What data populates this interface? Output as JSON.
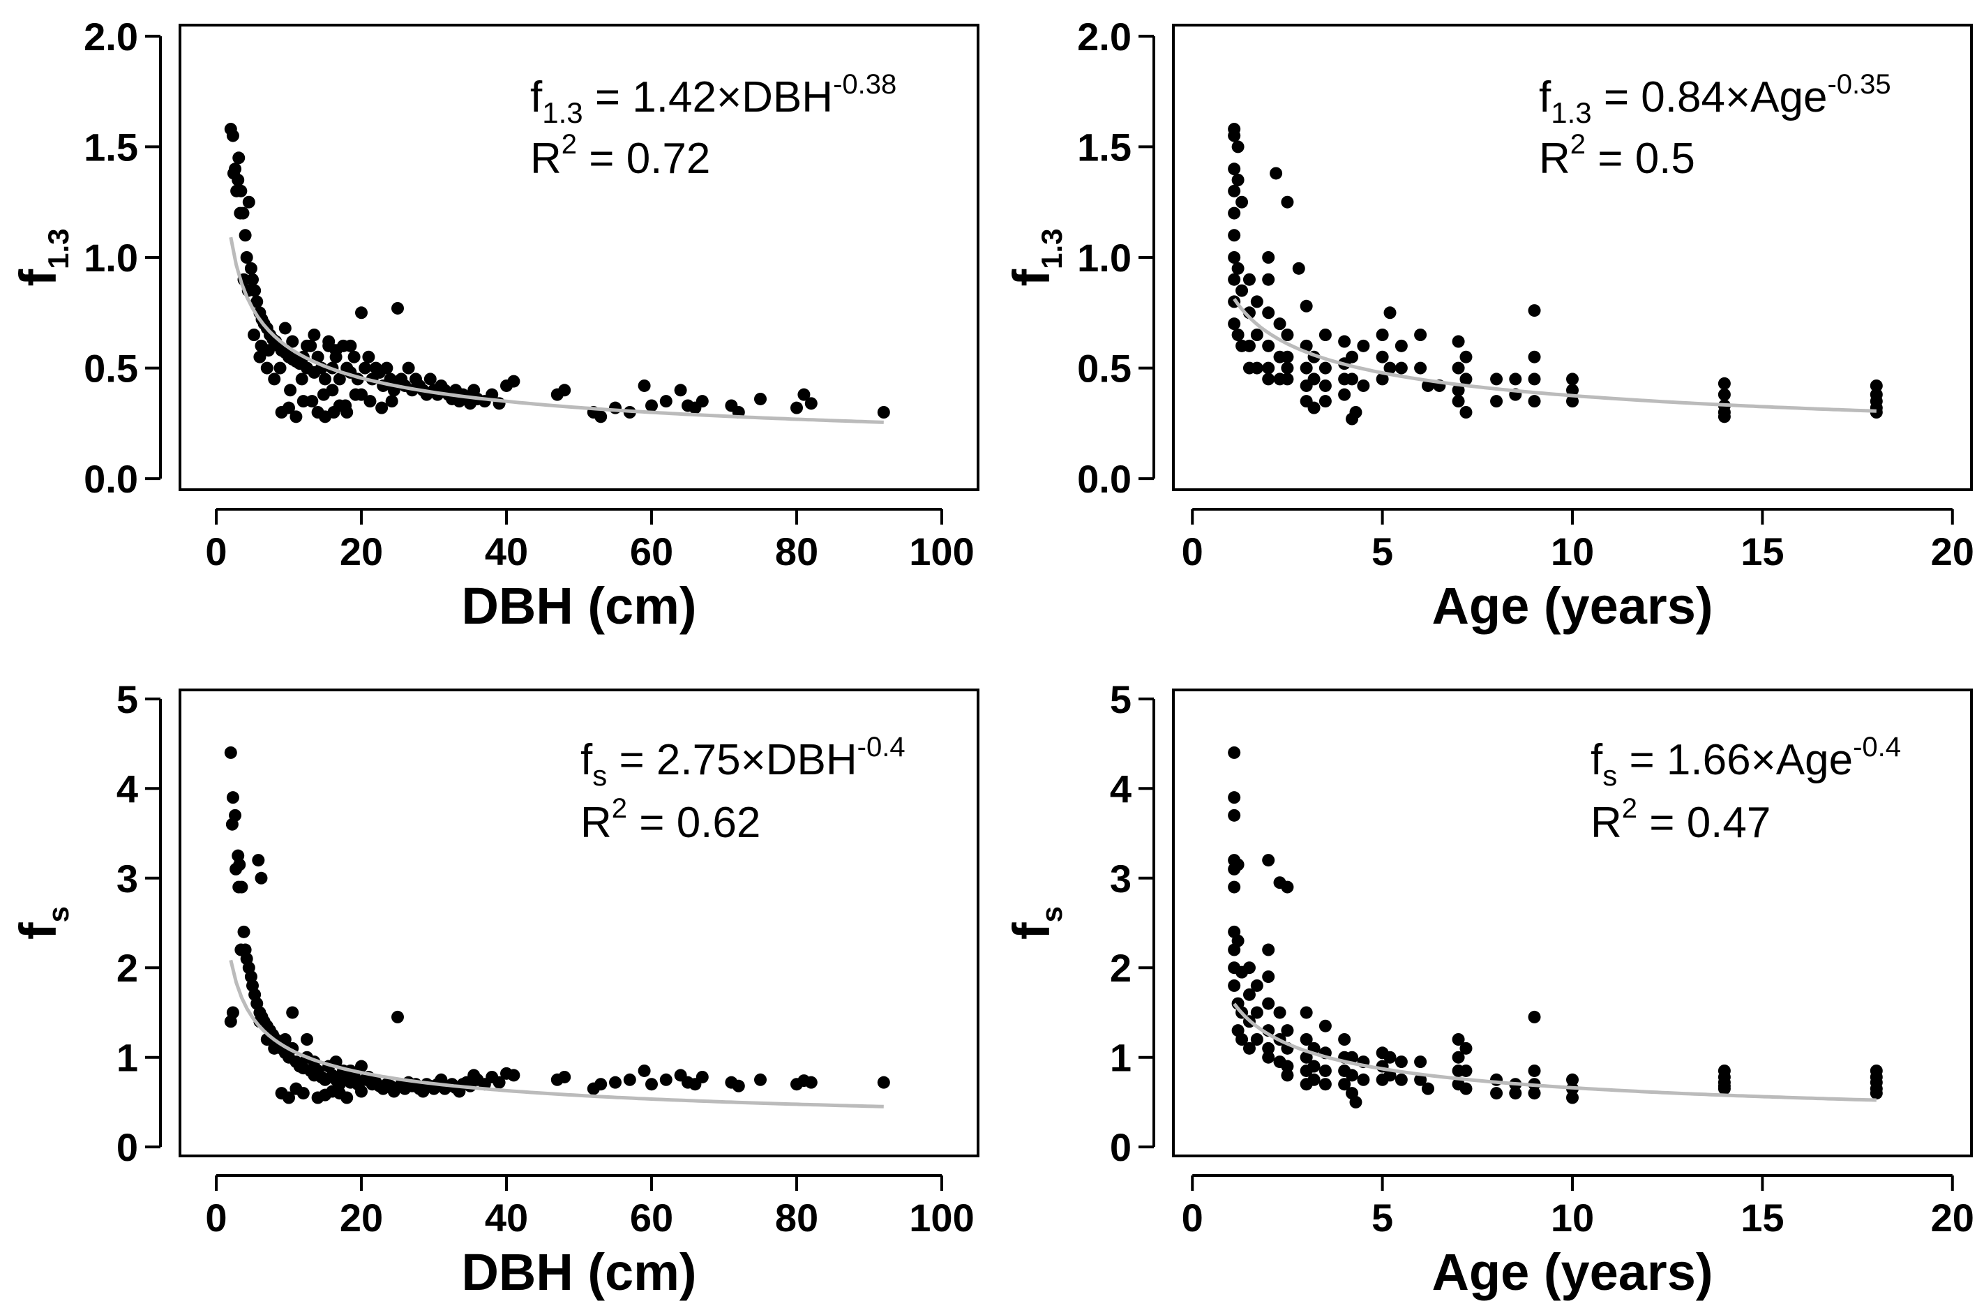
{
  "figure": {
    "panels": [
      {
        "id": "dbh-f13",
        "xlabel": "DBH (cm)",
        "ylabel_main": "f",
        "ylabel_sub": "1.3",
        "x_ticks": [
          "0",
          "20",
          "40",
          "60",
          "80",
          "100"
        ],
        "y_ticks": [
          "0.0",
          "0.5",
          "1.0",
          "1.5",
          "2.0"
        ],
        "eq_lhs": "f",
        "eq_sub": "1.3",
        "eq_rhs": " = 1.42×DBH",
        "eq_exp": "-0.38",
        "r2_lhs": "R",
        "r2_exp": "2",
        "r2_rhs": " = 0.72"
      },
      {
        "id": "age-f13",
        "xlabel": "Age (years)",
        "ylabel_main": "f",
        "ylabel_sub": "1.3",
        "x_ticks": [
          "0",
          "5",
          "10",
          "15",
          "20"
        ],
        "y_ticks": [
          "0.0",
          "0.5",
          "1.0",
          "1.5",
          "2.0"
        ],
        "eq_lhs": "f",
        "eq_sub": "1.3",
        "eq_rhs": " = 0.84×Age",
        "eq_exp": "-0.35",
        "r2_lhs": "R",
        "r2_exp": "2",
        "r2_rhs": " = 0.5"
      },
      {
        "id": "dbh-fs",
        "xlabel": "DBH (cm)",
        "ylabel_main": "f",
        "ylabel_sub": "s",
        "x_ticks": [
          "0",
          "20",
          "40",
          "60",
          "80",
          "100"
        ],
        "y_ticks": [
          "0",
          "1",
          "2",
          "3",
          "4",
          "5"
        ],
        "eq_lhs": "f",
        "eq_sub": "s",
        "eq_rhs": " = 2.75×DBH",
        "eq_exp": "-0.4",
        "r2_lhs": "R",
        "r2_exp": "2",
        "r2_rhs": " = 0.62"
      },
      {
        "id": "age-fs",
        "xlabel": "Age (years)",
        "ylabel_main": "f",
        "ylabel_sub": "s",
        "x_ticks": [
          "0",
          "5",
          "10",
          "15",
          "20"
        ],
        "y_ticks": [
          "0",
          "1",
          "2",
          "3",
          "4",
          "5"
        ],
        "eq_lhs": "f",
        "eq_sub": "s",
        "eq_rhs": " = 1.66×Age",
        "eq_exp": "-0.4",
        "r2_lhs": "R",
        "r2_exp": "2",
        "r2_rhs": " = 0.47"
      }
    ]
  },
  "chart_data": [
    {
      "type": "scatter",
      "title": "",
      "xlabel": "DBH (cm)",
      "ylabel": "f1.3",
      "xlim": [
        -5,
        105
      ],
      "ylim": [
        -0.05,
        2.05
      ],
      "grid": false,
      "point_color": "#000000",
      "fit_color": "#bbbbbb",
      "fit": {
        "model": "power",
        "a": 1.42,
        "b": -0.38,
        "x_range": [
          2,
          92
        ],
        "r2": 0.72
      },
      "annotations": [
        "f1.3 = 1.42×DBH^-0.38",
        "R^2 = 0.72"
      ],
      "points": {
        "x": [
          2.0,
          2.3,
          2.6,
          3.0,
          3.1,
          3.4,
          3.7,
          4.0,
          4.2,
          4.5,
          4.8,
          5.0,
          5.3,
          5.6,
          6.0,
          6.3,
          6.6,
          7.0,
          7.4,
          7.8,
          8.2,
          8.6,
          9.0,
          9.5,
          10.0,
          10.5,
          11.0,
          11.5,
          12.0,
          12.5,
          13.0,
          13.5,
          14.0,
          14.5,
          15.0,
          15.5,
          16.0,
          16.5,
          17.0,
          17.5,
          18.0,
          18.5,
          19.0,
          19.5,
          20.0,
          20.5,
          21.0,
          21.5,
          22.0,
          22.5,
          23.0,
          23.5,
          24.0,
          24.5,
          25.0,
          25.5,
          26.0,
          26.5,
          27.0,
          27.5,
          28.0,
          28.5,
          29.0,
          29.5,
          30.0,
          30.5,
          31.0,
          31.5,
          32.0,
          32.5,
          33.0,
          33.5,
          34.0,
          34.5,
          35.0,
          35.5,
          36.0,
          37.0,
          38.0,
          39.0,
          40.0,
          41.0,
          47.0,
          48.0,
          52.0,
          53.0,
          55.0,
          57.0,
          59.0,
          60.0,
          62.0,
          64.0,
          65.0,
          66.0,
          67.0,
          71.0,
          72.0,
          75.0,
          80.0,
          81.0,
          82.0,
          92.0,
          2.4,
          2.8,
          3.3,
          3.8,
          4.4,
          5.2,
          6.2,
          7.2,
          8.8,
          10.2,
          11.8,
          13.2,
          14.8,
          16.2,
          17.8,
          19.2,
          21.2,
          22.8,
          24.2,
          24.5,
          9.0,
          10.0,
          11.0,
          12.0,
          14.0,
          15.0,
          16.0,
          17.0,
          18.0,
          20.0,
          6.0,
          7.0,
          8.0,
          9.5,
          10.5,
          12.5,
          13.5,
          15.5,
          16.5,
          18.5
        ],
        "y": [
          1.58,
          1.55,
          1.4,
          1.35,
          1.45,
          1.3,
          1.2,
          1.1,
          1.0,
          1.25,
          0.95,
          0.9,
          0.85,
          0.8,
          0.75,
          0.72,
          0.7,
          0.68,
          0.65,
          0.63,
          0.62,
          0.6,
          0.58,
          0.57,
          0.55,
          0.54,
          0.53,
          0.52,
          0.55,
          0.5,
          0.6,
          0.48,
          0.55,
          0.5,
          0.45,
          0.6,
          0.5,
          0.55,
          0.45,
          0.6,
          0.5,
          0.48,
          0.55,
          0.45,
          0.75,
          0.5,
          0.55,
          0.45,
          0.5,
          0.48,
          0.42,
          0.5,
          0.45,
          0.4,
          0.77,
          0.45,
          0.42,
          0.5,
          0.4,
          0.45,
          0.42,
          0.4,
          0.38,
          0.45,
          0.4,
          0.38,
          0.42,
          0.4,
          0.38,
          0.36,
          0.4,
          0.35,
          0.38,
          0.36,
          0.34,
          0.4,
          0.36,
          0.35,
          0.38,
          0.34,
          0.42,
          0.44,
          0.38,
          0.4,
          0.3,
          0.28,
          0.32,
          0.3,
          0.42,
          0.33,
          0.35,
          0.4,
          0.33,
          0.32,
          0.35,
          0.33,
          0.3,
          0.36,
          0.32,
          0.38,
          0.34,
          0.3,
          1.38,
          1.3,
          1.2,
          0.9,
          0.85,
          0.65,
          0.6,
          0.58,
          0.5,
          0.4,
          0.45,
          0.35,
          0.38,
          0.3,
          0.33,
          0.38,
          0.35,
          0.32,
          0.35,
          0.42,
          0.3,
          0.32,
          0.28,
          0.35,
          0.3,
          0.28,
          0.4,
          0.33,
          0.3,
          0.38,
          0.55,
          0.5,
          0.45,
          0.68,
          0.62,
          0.6,
          0.65,
          0.62,
          0.58,
          0.6
        ]
      }
    },
    {
      "type": "scatter",
      "title": "",
      "xlabel": "Age (years)",
      "ylabel": "f1.3",
      "xlim": [
        -0.5,
        20.5
      ],
      "ylim": [
        -0.05,
        2.05
      ],
      "grid": false,
      "point_color": "#000000",
      "fit_color": "#bbbbbb",
      "fit": {
        "model": "power",
        "a": 0.84,
        "b": -0.35,
        "x_range": [
          1.1,
          18
        ],
        "r2": 0.5
      },
      "annotations": [
        "f1.3 = 0.84×Age^-0.35",
        "R^2 = 0.5"
      ],
      "points": {
        "x": [
          1.1,
          1.1,
          1.1,
          1.1,
          1.1,
          1.1,
          1.1,
          1.1,
          1.1,
          1.1,
          1.2,
          1.2,
          1.2,
          1.2,
          1.3,
          1.3,
          1.3,
          1.5,
          1.5,
          1.5,
          1.5,
          1.7,
          1.7,
          1.7,
          2.0,
          2.0,
          2.0,
          2.0,
          2.0,
          2.0,
          2.3,
          2.3,
          2.3,
          2.5,
          2.5,
          2.5,
          2.5,
          3.0,
          3.0,
          3.0,
          3.0,
          3.0,
          3.2,
          3.2,
          3.2,
          3.5,
          3.5,
          3.5,
          3.5,
          4.0,
          4.0,
          4.0,
          4.0,
          4.2,
          4.2,
          4.2,
          4.5,
          4.5,
          5.0,
          5.0,
          5.0,
          5.2,
          5.2,
          5.5,
          5.5,
          6.0,
          6.0,
          6.2,
          7.0,
          7.0,
          7.0,
          7.0,
          7.2,
          7.2,
          7.2,
          8.0,
          8.0,
          8.5,
          8.5,
          9.0,
          9.0,
          9.0,
          9.0,
          10.0,
          10.0,
          10.0,
          14.0,
          14.0,
          14.0,
          14.0,
          14.0,
          18.0,
          18.0,
          18.0,
          18.0,
          18.0,
          2.2,
          2.5,
          2.8,
          4.3,
          6.5
        ],
        "y": [
          1.58,
          1.55,
          1.4,
          1.3,
          1.2,
          1.1,
          1.0,
          0.9,
          0.8,
          0.7,
          1.5,
          1.35,
          0.95,
          0.65,
          1.25,
          0.85,
          0.6,
          0.9,
          0.75,
          0.6,
          0.5,
          0.8,
          0.65,
          0.5,
          1.0,
          0.9,
          0.75,
          0.6,
          0.5,
          0.45,
          0.7,
          0.55,
          0.45,
          0.65,
          0.55,
          0.5,
          0.45,
          0.78,
          0.6,
          0.5,
          0.42,
          0.35,
          0.55,
          0.45,
          0.32,
          0.65,
          0.5,
          0.42,
          0.35,
          0.62,
          0.52,
          0.45,
          0.38,
          0.55,
          0.45,
          0.27,
          0.6,
          0.42,
          0.65,
          0.55,
          0.45,
          0.75,
          0.5,
          0.6,
          0.5,
          0.65,
          0.5,
          0.42,
          0.62,
          0.5,
          0.4,
          0.35,
          0.55,
          0.45,
          0.3,
          0.45,
          0.35,
          0.45,
          0.38,
          0.76,
          0.55,
          0.45,
          0.35,
          0.45,
          0.4,
          0.35,
          0.43,
          0.38,
          0.33,
          0.3,
          0.28,
          0.42,
          0.38,
          0.35,
          0.32,
          0.3,
          1.38,
          1.25,
          0.95,
          0.3,
          0.42
        ]
      }
    },
    {
      "type": "scatter",
      "title": "",
      "xlabel": "DBH (cm)",
      "ylabel": "fs",
      "xlim": [
        -5,
        105
      ],
      "ylim": [
        -0.1,
        5.1
      ],
      "grid": false,
      "point_color": "#000000",
      "fit_color": "#bbbbbb",
      "fit": {
        "model": "power",
        "a": 2.75,
        "b": -0.4,
        "x_range": [
          2,
          92
        ],
        "r2": 0.62
      },
      "annotations": [
        "fs = 2.75×DBH^-0.4",
        "R^2 = 0.62"
      ],
      "points": {
        "x": [
          2.0,
          2.3,
          2.6,
          3.0,
          3.2,
          3.5,
          3.8,
          4.0,
          4.2,
          4.5,
          4.8,
          5.0,
          5.3,
          5.6,
          6.0,
          6.3,
          6.6,
          7.0,
          7.4,
          7.8,
          8.2,
          8.6,
          9.0,
          9.5,
          10.0,
          10.5,
          11.0,
          11.5,
          12.0,
          12.5,
          13.0,
          13.5,
          14.0,
          14.5,
          15.0,
          15.5,
          16.0,
          16.5,
          17.0,
          17.5,
          18.0,
          18.5,
          19.0,
          19.5,
          20.0,
          20.5,
          21.0,
          21.5,
          22.0,
          22.5,
          23.0,
          23.5,
          24.0,
          24.5,
          25.0,
          25.5,
          26.0,
          26.5,
          27.0,
          27.5,
          28.0,
          28.5,
          29.0,
          29.5,
          30.0,
          30.5,
          31.0,
          31.5,
          32.0,
          32.5,
          33.0,
          33.5,
          34.0,
          34.5,
          35.0,
          35.5,
          36.0,
          37.0,
          38.0,
          39.0,
          40.0,
          41.0,
          47.0,
          48.0,
          52.0,
          53.0,
          55.0,
          57.0,
          59.0,
          60.0,
          62.0,
          64.0,
          65.0,
          66.0,
          67.0,
          71.0,
          72.0,
          75.0,
          80.0,
          81.0,
          82.0,
          92.0,
          2.2,
          2.7,
          3.1,
          3.4,
          5.8,
          6.2,
          2.0,
          2.3,
          9.0,
          10.0,
          11.0,
          12.0,
          14.0,
          15.0,
          16.0,
          17.0,
          18.0,
          20.0,
          6.0,
          7.0,
          8.0,
          9.5,
          10.5,
          12.5,
          13.5,
          15.5,
          16.5,
          18.5
        ],
        "y": [
          4.4,
          3.9,
          3.7,
          3.25,
          3.15,
          2.9,
          2.4,
          2.2,
          2.1,
          2.0,
          1.9,
          1.8,
          1.7,
          1.6,
          1.5,
          1.45,
          1.4,
          1.35,
          1.3,
          1.25,
          1.2,
          1.15,
          1.1,
          1.05,
          1.0,
          1.5,
          0.95,
          0.9,
          0.88,
          1.2,
          0.85,
          0.8,
          0.85,
          0.78,
          0.75,
          0.9,
          0.8,
          0.75,
          0.7,
          0.85,
          0.75,
          0.72,
          0.8,
          0.7,
          0.9,
          0.75,
          0.78,
          0.7,
          0.72,
          0.68,
          0.65,
          0.7,
          0.68,
          0.62,
          1.45,
          0.7,
          0.65,
          0.72,
          0.68,
          0.7,
          0.65,
          0.62,
          0.7,
          0.68,
          0.65,
          0.7,
          0.75,
          0.65,
          0.68,
          0.7,
          0.66,
          0.62,
          0.7,
          0.72,
          0.68,
          0.8,
          0.75,
          0.7,
          0.78,
          0.72,
          0.82,
          0.8,
          0.75,
          0.78,
          0.65,
          0.7,
          0.72,
          0.75,
          0.85,
          0.7,
          0.75,
          0.8,
          0.72,
          0.7,
          0.78,
          0.72,
          0.68,
          0.75,
          0.7,
          0.74,
          0.72,
          0.72,
          3.6,
          3.1,
          2.9,
          2.2,
          3.2,
          3.0,
          1.4,
          1.5,
          0.6,
          0.55,
          0.65,
          0.6,
          0.55,
          0.58,
          0.62,
          0.6,
          0.55,
          0.62,
          1.4,
          1.2,
          1.1,
          1.2,
          1.1,
          1.0,
          0.95,
          0.9,
          0.95,
          0.85
        ]
      }
    },
    {
      "type": "scatter",
      "title": "",
      "xlabel": "Age (years)",
      "ylabel": "fs",
      "xlim": [
        -0.5,
        20.5
      ],
      "ylim": [
        -0.1,
        5.1
      ],
      "grid": false,
      "point_color": "#000000",
      "fit_color": "#bbbbbb",
      "fit": {
        "model": "power",
        "a": 1.66,
        "b": -0.4,
        "x_range": [
          1.1,
          18
        ],
        "r2": 0.47
      },
      "annotations": [
        "fs = 1.66×Age^-0.4",
        "R^2 = 0.47"
      ],
      "points": {
        "x": [
          1.1,
          1.1,
          1.1,
          1.1,
          1.1,
          1.1,
          1.1,
          1.1,
          1.1,
          1.1,
          1.2,
          1.2,
          1.2,
          1.2,
          1.3,
          1.3,
          1.3,
          1.5,
          1.5,
          1.5,
          1.5,
          1.7,
          1.7,
          1.7,
          2.0,
          2.0,
          2.0,
          2.0,
          2.0,
          2.0,
          2.3,
          2.3,
          2.3,
          2.5,
          2.5,
          2.5,
          2.5,
          3.0,
          3.0,
          3.0,
          3.0,
          3.0,
          3.2,
          3.2,
          3.2,
          3.5,
          3.5,
          3.5,
          3.5,
          4.0,
          4.0,
          4.0,
          4.0,
          4.2,
          4.2,
          4.2,
          4.5,
          4.5,
          5.0,
          5.0,
          5.0,
          5.2,
          5.2,
          5.5,
          5.5,
          6.0,
          6.0,
          6.2,
          7.0,
          7.0,
          7.0,
          7.0,
          7.2,
          7.2,
          7.2,
          8.0,
          8.0,
          8.5,
          8.5,
          9.0,
          9.0,
          9.0,
          9.0,
          10.0,
          10.0,
          10.0,
          14.0,
          14.0,
          14.0,
          14.0,
          14.0,
          18.0,
          18.0,
          18.0,
          18.0,
          18.0,
          2.0,
          2.3,
          2.5,
          4.3
        ],
        "y": [
          4.4,
          3.9,
          3.7,
          3.2,
          3.1,
          2.9,
          2.4,
          2.2,
          2.0,
          1.8,
          3.15,
          2.3,
          1.6,
          1.3,
          1.95,
          1.5,
          1.2,
          2.0,
          1.7,
          1.4,
          1.1,
          1.8,
          1.5,
          1.2,
          2.2,
          1.9,
          1.6,
          1.3,
          1.1,
          1.0,
          1.5,
          1.2,
          0.95,
          1.3,
          1.1,
          0.9,
          0.8,
          1.5,
          1.2,
          1.0,
          0.85,
          0.7,
          1.1,
          0.9,
          0.75,
          1.35,
          1.05,
          0.85,
          0.7,
          1.2,
          1.0,
          0.85,
          0.7,
          1.0,
          0.8,
          0.6,
          0.95,
          0.75,
          1.05,
          0.9,
          0.75,
          1.0,
          0.8,
          0.95,
          0.75,
          0.95,
          0.75,
          0.65,
          1.2,
          1.0,
          0.85,
          0.7,
          1.1,
          0.85,
          0.65,
          0.75,
          0.6,
          0.7,
          0.6,
          1.45,
          0.85,
          0.7,
          0.6,
          0.75,
          0.65,
          0.55,
          0.85,
          0.78,
          0.72,
          0.68,
          0.65,
          0.85,
          0.78,
          0.72,
          0.65,
          0.6,
          3.2,
          2.95,
          2.9,
          0.5
        ]
      }
    }
  ]
}
